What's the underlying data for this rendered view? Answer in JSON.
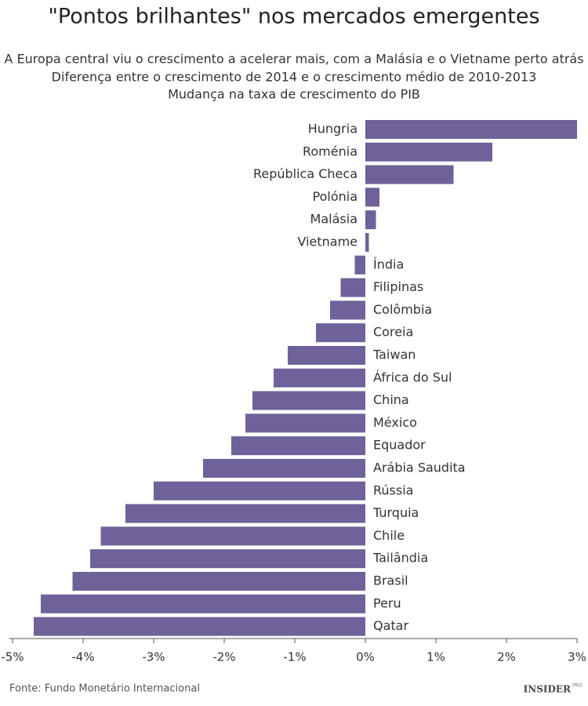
{
  "chart_data": {
    "type": "bar",
    "orientation": "horizontal",
    "title": "\"Pontos brilhantes\" nos mercados emergentes",
    "subtitles": [
      "A Europa central viu o crescimento a acelerar mais, com a Malásia e o Vietname perto atrás",
      "Diferença entre o crescimento de 2014 e o crescimento médio de 2010-2013",
      "Mudança na taxa de crescimento do PIB"
    ],
    "categories": [
      "Hungria",
      "Roménia",
      "República Checa",
      "Polónia",
      "Malásia",
      "Vietname",
      "Índia",
      "Filipinas",
      "Colômbia",
      "Coreia",
      "Taiwan",
      "África do Sul",
      "China",
      "México",
      "Equador",
      "Arábia Saudita",
      "Rússia",
      "Turquia",
      "Chile",
      "Tailândia",
      "Brasil",
      "Peru",
      "Qatar"
    ],
    "values": [
      3.0,
      1.8,
      1.25,
      0.2,
      0.15,
      0.05,
      -0.15,
      -0.35,
      -0.5,
      -0.7,
      -1.1,
      -1.3,
      -1.6,
      -1.7,
      -1.9,
      -2.3,
      -3.0,
      -3.4,
      -3.75,
      -3.9,
      -4.15,
      -4.6,
      -4.7
    ],
    "color": "#6f619a",
    "xlim": [
      -5,
      3
    ],
    "xticks": [
      {
        "value": -5,
        "label": "-5%"
      },
      {
        "value": -4,
        "label": "-4%"
      },
      {
        "value": -3,
        "label": "-3%"
      },
      {
        "value": -2,
        "label": "-2%"
      },
      {
        "value": -1,
        "label": "-1%"
      },
      {
        "value": 0,
        "label": "0%"
      },
      {
        "value": 1,
        "label": "1%"
      },
      {
        "value": 2,
        "label": "2%"
      },
      {
        "value": 3,
        "label": "3%"
      }
    ],
    "source": "Fonte: Fundo Monetário Internacional",
    "logo": "INSIDER",
    "logo_sup": "PRO"
  }
}
